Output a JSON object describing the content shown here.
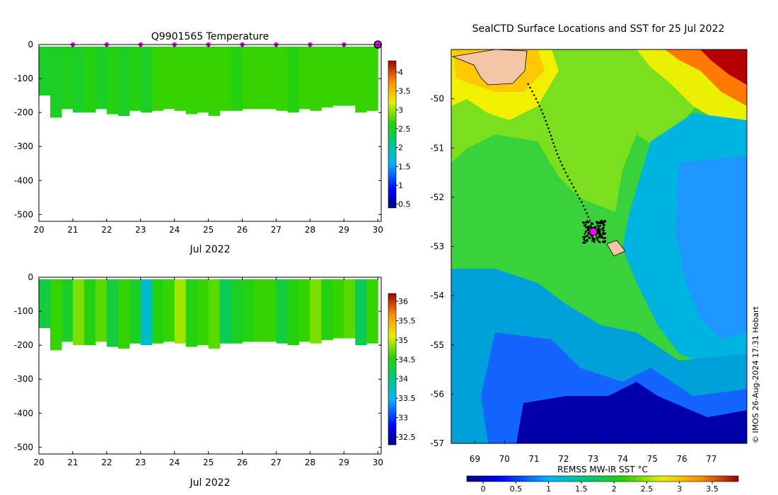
{
  "chart_data": [
    {
      "id": "temperature",
      "type": "heatmap",
      "title": "Q9901565  Temperature",
      "xlabel": "Jul 2022",
      "x_ticks": [
        "20",
        "21",
        "22",
        "23",
        "24",
        "25",
        "26",
        "27",
        "28",
        "29",
        "30"
      ],
      "xlim": [
        20,
        30.1
      ],
      "y_ticks": [
        "0",
        "-100",
        "-200",
        "-300",
        "-400",
        "-500"
      ],
      "ylim": [
        -520,
        0
      ],
      "colorbar_ticks": [
        "0.5",
        "1",
        "1.5",
        "2",
        "2.5",
        "3",
        "3.5",
        "4"
      ],
      "colorbar_range": [
        0.4,
        4.3
      ],
      "profile_max_depths": [
        150,
        215,
        190,
        200,
        200,
        190,
        205,
        210,
        195,
        200,
        195,
        190,
        195,
        205,
        200,
        210,
        195,
        195,
        190,
        190,
        190,
        195,
        200,
        190,
        195,
        185,
        180,
        180,
        200,
        195
      ],
      "profile_values": [
        2.5,
        2.5,
        2.55,
        2.5,
        2.6,
        2.5,
        2.6,
        2.5,
        2.6,
        2.5,
        2.7,
        2.7,
        2.7,
        2.7,
        2.7,
        2.7,
        2.7,
        2.6,
        2.7,
        2.7,
        2.7,
        2.7,
        2.6,
        2.7,
        2.7,
        2.7,
        2.7,
        2.7,
        2.7,
        2.7
      ],
      "marker_days": [
        21,
        22,
        23,
        24,
        25,
        26,
        27,
        28,
        29
      ],
      "marker_color": "#ff00ff"
    },
    {
      "id": "salinity",
      "type": "heatmap",
      "title": "",
      "xlabel": "Jul 2022",
      "x_ticks": [
        "20",
        "21",
        "22",
        "23",
        "24",
        "25",
        "26",
        "27",
        "28",
        "29",
        "30"
      ],
      "xlim": [
        20,
        30.1
      ],
      "y_ticks": [
        "0",
        "-100",
        "-200",
        "-300",
        "-400",
        "-500"
      ],
      "ylim": [
        -520,
        0
      ],
      "colorbar_ticks": [
        "32.5",
        "33",
        "33.5",
        "34",
        "34.5",
        "35",
        "35.5",
        "36"
      ],
      "colorbar_range": [
        32.3,
        36.2
      ],
      "profile_max_depths": [
        150,
        215,
        190,
        200,
        200,
        190,
        205,
        210,
        195,
        200,
        195,
        190,
        195,
        205,
        200,
        210,
        195,
        195,
        190,
        190,
        190,
        195,
        200,
        190,
        195,
        185,
        180,
        180,
        200,
        195
      ],
      "profile_values": [
        34.3,
        34.6,
        34.4,
        34.8,
        34.5,
        34.7,
        34.3,
        34.6,
        34.4,
        33.7,
        34.5,
        34.6,
        34.9,
        34.5,
        34.6,
        34.7,
        34.2,
        34.4,
        34.5,
        34.6,
        34.6,
        34.3,
        34.5,
        34.6,
        34.8,
        34.5,
        34.6,
        34.7,
        34.2,
        34.6
      ]
    },
    {
      "id": "sst_map",
      "type": "heatmap",
      "title": "SealCTD Surface Locations and SST for 25 Jul 2022",
      "x_ticks": [
        "69",
        "70",
        "71",
        "72",
        "73",
        "74",
        "75",
        "76",
        "77"
      ],
      "xlim": [
        68.2,
        78.2
      ],
      "y_ticks": [
        "-50",
        "-51",
        "-52",
        "-53",
        "-54",
        "-55",
        "-56",
        "-57"
      ],
      "ylim": [
        -57,
        -49.0
      ],
      "colorbar_label": "REMSS MW-IR SST °C",
      "colorbar_ticks": [
        "0",
        "0.5",
        "1",
        "1.5",
        "2",
        "2.5",
        "3",
        "3.5"
      ],
      "colorbar_range": [
        -0.25,
        3.9
      ],
      "seal_position": {
        "lon": 73.0,
        "lat": -52.7
      },
      "track_start": {
        "lon": 70.8,
        "lat": -49.7
      },
      "credit": "© IMOS 26-Aug-2024 17:31 Hobart"
    }
  ]
}
